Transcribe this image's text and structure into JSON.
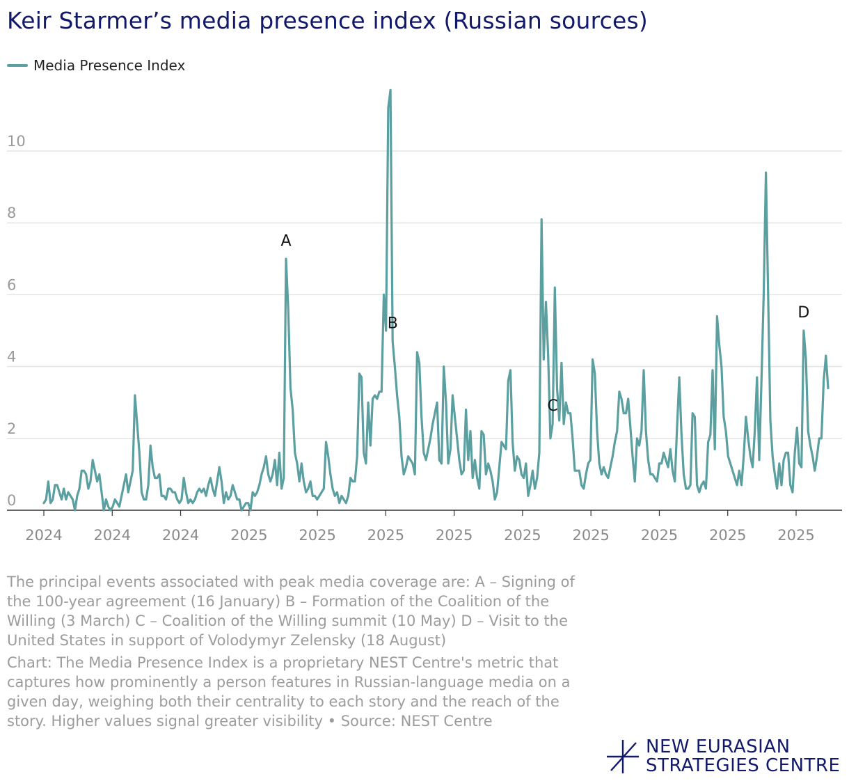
{
  "title": "Keir Starmer’s media presence index (Russian sources)",
  "colors": {
    "line": "#5b9fa0",
    "title": "#12196b",
    "grid": "#e4e4e4",
    "axis": "#333333",
    "tick": "#9a9a9a",
    "note": "#9c9c9c"
  },
  "chart_data": {
    "type": "line",
    "title": "Keir Starmer’s media presence index (Russian sources)",
    "xlabel": "",
    "ylabel": "",
    "ylim": [
      0,
      11.7
    ],
    "yticks": [
      0,
      2,
      4,
      6,
      8,
      10
    ],
    "xtick_labels": [
      "2024",
      "2024",
      "2024",
      "2025",
      "2025",
      "2025",
      "2025",
      "2025",
      "2025",
      "2025",
      "2025",
      "2025"
    ],
    "grid": true,
    "legend": "top-left",
    "series": [
      {
        "name": "Media Presence Index",
        "values": [
          0.2,
          0.3,
          0.8,
          0.2,
          0.3,
          0.7,
          0.7,
          0.5,
          0.3,
          0.6,
          0.3,
          0.5,
          0.4,
          0.3,
          0.0,
          0.4,
          0.6,
          1.1,
          1.1,
          1.0,
          0.6,
          0.8,
          1.4,
          1.1,
          0.8,
          1.0,
          0.5,
          0.0,
          0.3,
          0.1,
          0.0,
          0.1,
          0.3,
          0.2,
          0.1,
          0.4,
          0.7,
          1.0,
          0.5,
          0.8,
          1.1,
          3.2,
          2.4,
          1.6,
          0.5,
          0.3,
          0.3,
          0.7,
          1.8,
          1.2,
          0.9,
          0.9,
          1.0,
          0.4,
          0.4,
          0.3,
          0.6,
          0.6,
          0.5,
          0.5,
          0.3,
          0.2,
          0.3,
          0.9,
          0.5,
          0.2,
          0.3,
          0.2,
          0.3,
          0.5,
          0.6,
          0.5,
          0.6,
          0.4,
          0.7,
          0.9,
          0.6,
          0.4,
          0.8,
          1.2,
          0.8,
          0.2,
          0.5,
          0.3,
          0.4,
          0.7,
          0.5,
          0.3,
          0.3,
          0.0,
          0.1,
          0.2,
          0.2,
          0.0,
          0.5,
          0.4,
          0.5,
          0.7,
          1.0,
          1.2,
          1.5,
          1.0,
          0.8,
          1.0,
          1.4,
          0.7,
          1.6,
          0.6,
          0.9,
          7.0,
          5.6,
          3.4,
          2.8,
          1.6,
          1.3,
          0.8,
          1.3,
          0.8,
          0.5,
          0.6,
          0.8,
          0.4,
          0.4,
          0.3,
          0.4,
          0.5,
          0.6,
          1.9,
          1.5,
          1.0,
          0.6,
          0.4,
          0.5,
          0.2,
          0.4,
          0.3,
          0.2,
          0.4,
          0.9,
          0.8,
          0.8,
          1.5,
          3.8,
          3.7,
          1.6,
          1.3,
          3.0,
          1.8,
          3.1,
          3.2,
          3.1,
          3.3,
          3.3,
          6.0,
          5.0,
          11.2,
          11.7,
          4.7,
          4.0,
          3.2,
          2.6,
          1.5,
          1.0,
          1.2,
          1.5,
          1.4,
          1.3,
          1.0,
          4.4,
          4.1,
          2.6,
          1.6,
          1.4,
          1.7,
          2.0,
          2.4,
          2.7,
          3.0,
          1.4,
          1.3,
          4.0,
          3.0,
          1.3,
          1.7,
          3.2,
          2.6,
          2.0,
          1.4,
          1.0,
          1.1,
          2.8,
          1.4,
          2.2,
          0.9,
          1.4,
          0.9,
          0.6,
          2.2,
          2.1,
          1.0,
          1.3,
          1.1,
          0.8,
          0.3,
          0.5,
          1.2,
          1.9,
          1.8,
          1.7,
          3.6,
          3.9,
          1.9,
          1.1,
          1.5,
          1.4,
          1.0,
          0.9,
          1.3,
          0.4,
          0.7,
          1.1,
          0.6,
          0.9,
          1.6,
          8.1,
          4.2,
          5.8,
          4.3,
          2.0,
          2.4,
          6.2,
          3.4,
          2.5,
          4.1,
          2.4,
          3.0,
          2.7,
          2.7,
          2.0,
          1.1,
          1.1,
          1.1,
          0.7,
          0.6,
          1.0,
          1.3,
          1.4,
          4.2,
          3.8,
          2.2,
          1.3,
          1.0,
          1.2,
          1.0,
          0.9,
          1.2,
          1.5,
          1.9,
          2.2,
          3.3,
          3.1,
          2.7,
          2.7,
          3.1,
          2.3,
          1.5,
          0.8,
          2.0,
          1.8,
          2.2,
          3.9,
          2.2,
          1.4,
          1.0,
          1.0,
          0.9,
          0.8,
          1.3,
          1.3,
          1.6,
          1.4,
          1.2,
          1.7,
          1.1,
          0.8,
          2.3,
          3.7,
          2.1,
          1.0,
          0.6,
          0.6,
          0.7,
          2.7,
          2.6,
          0.7,
          0.5,
          0.7,
          0.8,
          0.6,
          1.9,
          2.1,
          3.9,
          1.7,
          5.4,
          4.6,
          4.0,
          2.6,
          2.2,
          1.5,
          1.3,
          1.1,
          0.9,
          0.7,
          1.1,
          0.7,
          1.5,
          2.6,
          2.0,
          1.5,
          1.2,
          2.2,
          3.7,
          1.4,
          3.6,
          6.0,
          9.4,
          6.0,
          2.5,
          1.5,
          1.0,
          0.6,
          1.3,
          0.7,
          1.4,
          1.6,
          1.6,
          0.7,
          0.5,
          1.6,
          2.3,
          1.3,
          1.2,
          5.0,
          4.2,
          2.2,
          1.8,
          1.5,
          1.1,
          1.5,
          2.0,
          2.0,
          3.6,
          4.3,
          3.4
        ]
      }
    ],
    "annotations": [
      {
        "label": "A",
        "index": 109
      },
      {
        "label": "B",
        "index": 157
      },
      {
        "label": "C",
        "index": 229
      },
      {
        "label": "D",
        "index": 342
      }
    ]
  },
  "notes": {
    "events": "The principal events associated with peak media coverage are: A – Signing of the 100-year agreement (16 January) B – Formation of the Coalition of the Willing (3 March) C – Coalition of the Willing summit (10 May) D – Visit to the United States in support of Volodymyr Zelensky (18 August)",
    "source": "Chart: The Media Presence Index is a proprietary NEST Centre's metric that captures how prominently a person features in Russian-language media on a given day, weighing both their centrality to each story and the reach of the story. Higher values signal greater visibility • Source: NEST Centre"
  },
  "logo": {
    "line1": "NEW EURASIAN",
    "line2": "STRATEGIES CENTRE"
  }
}
